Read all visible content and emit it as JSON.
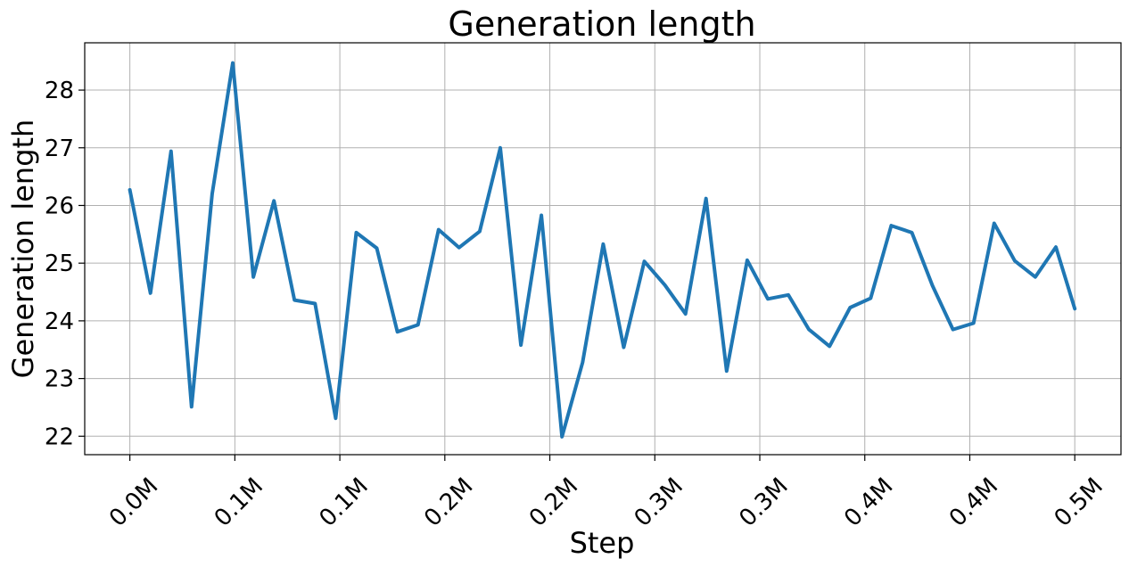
{
  "chart_data": {
    "type": "line",
    "title": "Generation length",
    "xlabel": "Step",
    "ylabel": "Generation length",
    "xlim": [
      -21500,
      472000
    ],
    "ylim": [
      21.68,
      28.82
    ],
    "grid": true,
    "x_ticks": [
      {
        "value": 0,
        "label": "0.0M"
      },
      {
        "value": 50000,
        "label": "0.1M"
      },
      {
        "value": 100000,
        "label": "0.1M"
      },
      {
        "value": 150000,
        "label": "0.2M"
      },
      {
        "value": 200000,
        "label": "0.2M"
      },
      {
        "value": 250000,
        "label": "0.3M"
      },
      {
        "value": 300000,
        "label": "0.3M"
      },
      {
        "value": 350000,
        "label": "0.4M"
      },
      {
        "value": 400000,
        "label": "0.4M"
      },
      {
        "value": 450000,
        "label": "0.5M"
      }
    ],
    "y_ticks": [
      {
        "value": 22,
        "label": "22"
      },
      {
        "value": 23,
        "label": "23"
      },
      {
        "value": 24,
        "label": "24"
      },
      {
        "value": 25,
        "label": "25"
      },
      {
        "value": 26,
        "label": "26"
      },
      {
        "value": 27,
        "label": "27"
      },
      {
        "value": 28,
        "label": "28"
      }
    ],
    "series": [
      {
        "name": "",
        "color": "#1f77b4",
        "x": [
          0,
          9800,
          19600,
          29400,
          39200,
          49000,
          58800,
          68600,
          78400,
          88200,
          98000,
          107800,
          117600,
          127400,
          137200,
          147000,
          156800,
          166600,
          176400,
          186200,
          196000,
          205800,
          215600,
          225400,
          235200,
          245000,
          254800,
          264600,
          274400,
          284200,
          294000,
          303800,
          313600,
          323400,
          333200,
          343000,
          352800,
          362600,
          372400,
          382200,
          392000,
          401800,
          411600,
          421400,
          431200,
          441000,
          450000
        ],
        "values": [
          26.27,
          24.48,
          26.94,
          22.51,
          26.2,
          28.47,
          24.76,
          26.08,
          24.36,
          24.3,
          22.31,
          25.53,
          25.26,
          23.81,
          23.93,
          25.58,
          25.27,
          25.55,
          27.0,
          23.58,
          25.83,
          21.99,
          23.28,
          25.33,
          23.54,
          25.03,
          24.62,
          24.12,
          26.12,
          23.13,
          25.05,
          24.38,
          24.45,
          23.85,
          23.56,
          24.23,
          24.39,
          25.65,
          25.53,
          24.61,
          23.85,
          23.96,
          25.69,
          25.04,
          24.76,
          25.28,
          24.21
        ]
      }
    ]
  }
}
